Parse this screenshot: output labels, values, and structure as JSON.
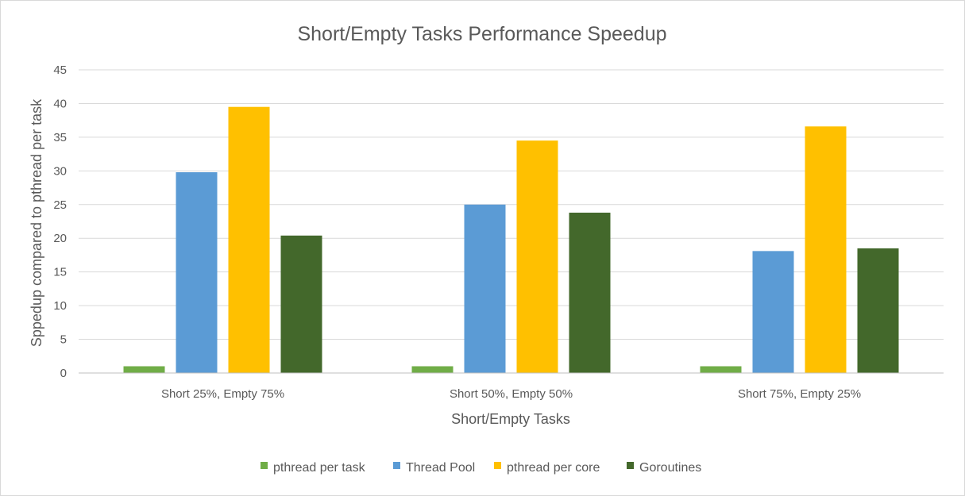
{
  "chart_data": {
    "type": "bar",
    "title": "Short/Empty Tasks Performance Speedup",
    "xlabel": "Short/Empty Tasks",
    "ylabel": "Sppedup compared to pthread per task",
    "categories": [
      "Short 25%, Empty 75%",
      "Short 50%, Empty 50%",
      "Short 75%, Empty 25%"
    ],
    "series": [
      {
        "name": "pthread per task",
        "color": "#70ad47",
        "values": [
          1,
          1,
          1
        ]
      },
      {
        "name": "Thread Pool",
        "color": "#5b9bd5",
        "values": [
          29.8,
          25,
          18.1
        ]
      },
      {
        "name": "pthread per core",
        "color": "#ffc000",
        "values": [
          39.5,
          34.5,
          36.6
        ]
      },
      {
        "name": "Goroutines",
        "color": "#43682b",
        "values": [
          20.4,
          23.8,
          18.5
        ]
      }
    ],
    "ylim": [
      0,
      45
    ],
    "yticks": [
      "0",
      "5",
      "10",
      "15",
      "20",
      "25",
      "30",
      "35",
      "40",
      "45"
    ],
    "grid": true,
    "legend_position": "bottom",
    "gridline_color": "#d9d9d9",
    "axis_color": "#bfbfbf",
    "text_color": "#595959"
  }
}
